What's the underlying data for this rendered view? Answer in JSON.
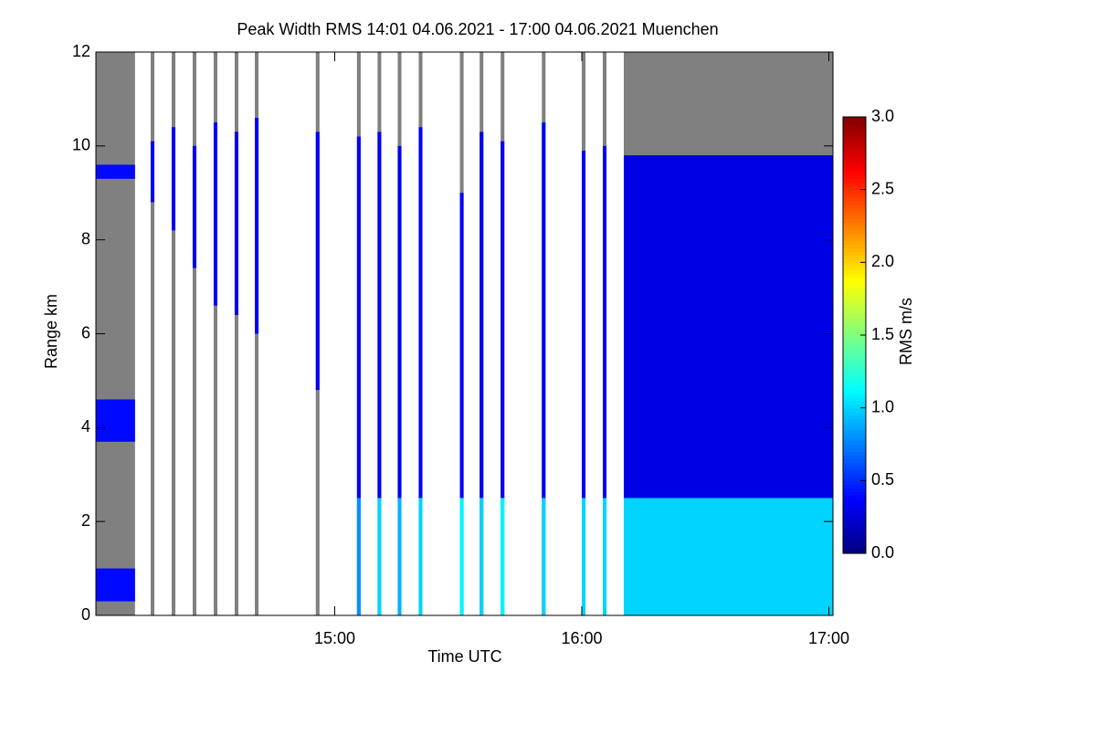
{
  "chart_data": {
    "type": "heatmap",
    "title": "Peak Width RMS   14:01 04.06.2021 - 17:00 04.06.2021 Muenchen",
    "x_label": "Time UTC",
    "y_label": "Range km",
    "colorbar_label": "RMS m/s",
    "xlim": [
      842,
      1021
    ],
    "xticks": [
      {
        "value": 900,
        "label": "15:00"
      },
      {
        "value": 960,
        "label": "16:00"
      },
      {
        "value": 1020,
        "label": "17:00"
      }
    ],
    "ylim": [
      0,
      12
    ],
    "yticks": [
      0,
      2,
      4,
      6,
      8,
      10,
      12
    ],
    "clim": [
      0,
      3
    ],
    "cticks": [
      {
        "value": 0,
        "label": "0.0"
      },
      0.5,
      {
        "value": 1,
        "label": "1.0"
      },
      1.5,
      {
        "value": 2,
        "label": "2.0"
      },
      2.5,
      {
        "value": 3,
        "label": "3.0"
      }
    ],
    "colormap": "jet",
    "nodata_color": "#808080",
    "columns": [
      {
        "start": 842,
        "end": 851.5,
        "layers": [
          {
            "from": 9.3,
            "to": 9.6,
            "value": 0.4
          },
          {
            "from": 3.7,
            "to": 4.6,
            "value": 0.4
          },
          {
            "from": 0.3,
            "to": 1.0,
            "value": 0.4
          }
        ]
      },
      {
        "start": 855.3,
        "end": 856.2,
        "layers": [
          {
            "from": 8.8,
            "to": 10.1,
            "value": 0.35
          }
        ]
      },
      {
        "start": 860.4,
        "end": 861.3,
        "layers": [
          {
            "from": 8.2,
            "to": 10.4,
            "value": 0.35
          }
        ]
      },
      {
        "start": 865.5,
        "end": 866.4,
        "layers": [
          {
            "from": 7.4,
            "to": 10.0,
            "value": 0.35
          }
        ]
      },
      {
        "start": 870.6,
        "end": 871.5,
        "layers": [
          {
            "from": 6.6,
            "to": 10.5,
            "value": 0.35
          }
        ]
      },
      {
        "start": 875.7,
        "end": 876.6,
        "layers": [
          {
            "from": 6.4,
            "to": 10.3,
            "value": 0.35
          }
        ]
      },
      {
        "start": 880.6,
        "end": 881.5,
        "layers": [
          {
            "from": 6.0,
            "to": 10.6,
            "value": 0.35
          }
        ]
      },
      {
        "start": 895.4,
        "end": 896.3,
        "layers": [
          {
            "from": 4.8,
            "to": 10.3,
            "value": 0.35
          }
        ]
      },
      {
        "start": 905.4,
        "end": 906.3,
        "layers": [
          {
            "from": 2.5,
            "to": 10.2,
            "value": 0.35
          },
          {
            "from": 0,
            "to": 2.5,
            "value": 0.8
          }
        ]
      },
      {
        "start": 910.4,
        "end": 911.3,
        "layers": [
          {
            "from": 2.5,
            "to": 10.3,
            "value": 0.35
          },
          {
            "from": 0,
            "to": 2.5,
            "value": 1.0
          }
        ]
      },
      {
        "start": 915.3,
        "end": 916.2,
        "layers": [
          {
            "from": 2.5,
            "to": 10.0,
            "value": 0.35
          },
          {
            "from": 0,
            "to": 2.5,
            "value": 0.9
          }
        ]
      },
      {
        "start": 920.4,
        "end": 921.3,
        "layers": [
          {
            "from": 2.5,
            "to": 10.4,
            "value": 0.35
          },
          {
            "from": 0,
            "to": 2.5,
            "value": 1.0
          }
        ]
      },
      {
        "start": 930.4,
        "end": 931.3,
        "layers": [
          {
            "from": 2.5,
            "to": 9.0,
            "value": 0.35
          },
          {
            "from": 0,
            "to": 2.5,
            "value": 1.1
          }
        ]
      },
      {
        "start": 935.2,
        "end": 936.1,
        "layers": [
          {
            "from": 2.5,
            "to": 10.3,
            "value": 0.35
          },
          {
            "from": 0,
            "to": 2.5,
            "value": 1.0
          }
        ]
      },
      {
        "start": 940.3,
        "end": 941.2,
        "layers": [
          {
            "from": 2.5,
            "to": 10.1,
            "value": 0.35
          },
          {
            "from": 0,
            "to": 2.5,
            "value": 1.1
          }
        ]
      },
      {
        "start": 950.3,
        "end": 951.2,
        "layers": [
          {
            "from": 2.5,
            "to": 10.5,
            "value": 0.35
          },
          {
            "from": 0,
            "to": 2.5,
            "value": 1.0
          }
        ]
      },
      {
        "start": 960.0,
        "end": 960.9,
        "layers": [
          {
            "from": 2.5,
            "to": 9.9,
            "value": 0.35
          },
          {
            "from": 0,
            "to": 2.5,
            "value": 1.0
          }
        ]
      },
      {
        "start": 965.1,
        "end": 966.0,
        "layers": [
          {
            "from": 2.5,
            "to": 10.0,
            "value": 0.35
          },
          {
            "from": 0,
            "to": 2.5,
            "value": 1.0
          }
        ]
      },
      {
        "start": 970.2,
        "end": 1021,
        "layers": [
          {
            "from": 2.5,
            "to": 9.8,
            "value": 0.3
          },
          {
            "from": 0,
            "to": 2.5,
            "value": 1.0
          }
        ]
      }
    ]
  }
}
